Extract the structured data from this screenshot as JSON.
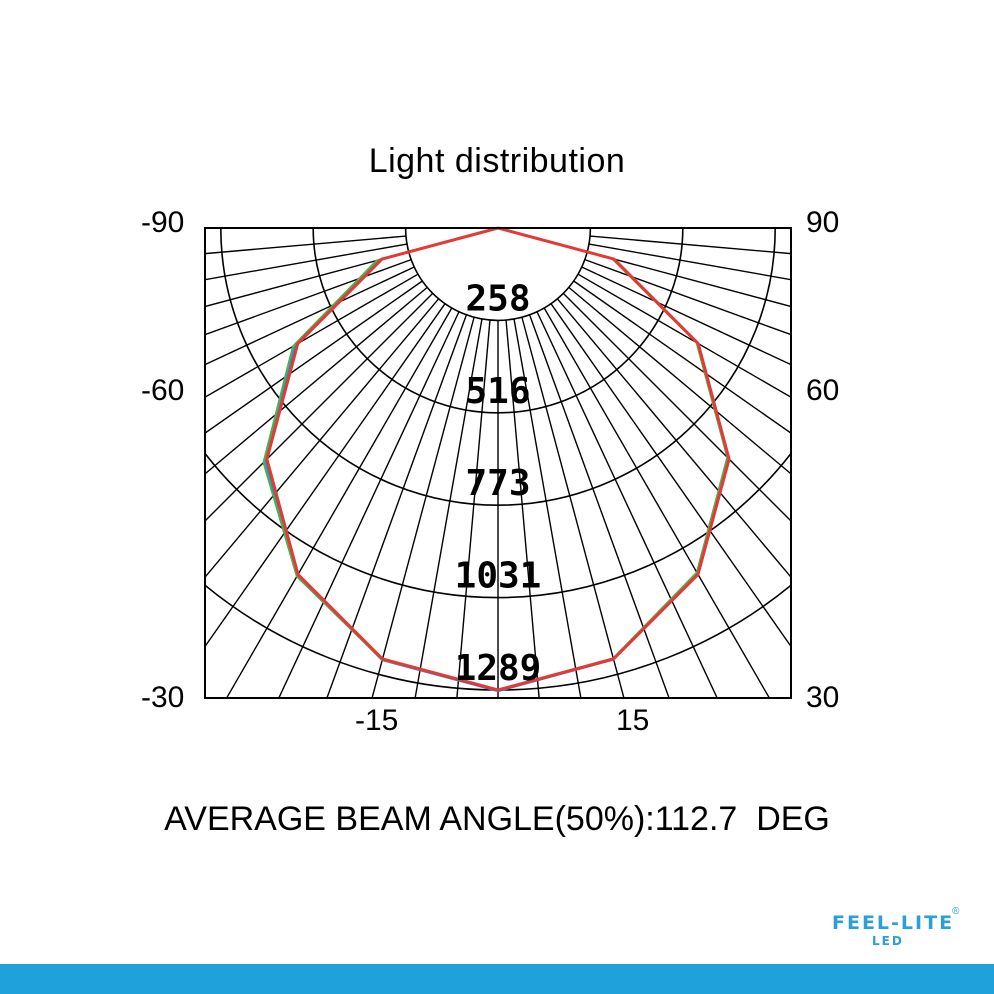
{
  "chart_data": {
    "type": "polar",
    "title": "Light distribution",
    "radial_labels": [
      "258",
      "516",
      "773",
      "1031",
      "1289"
    ],
    "radial_max": 1289,
    "left_labels": [
      "-90",
      "-60",
      "-30"
    ],
    "right_labels": [
      "90",
      "60",
      "30"
    ],
    "bottom_labels": [
      "-15",
      "15"
    ],
    "series": [
      {
        "color": "#e53935",
        "angles": [
          -90,
          -75,
          -60,
          -45,
          -30,
          -15,
          0,
          15,
          30,
          45,
          60,
          75,
          90
        ],
        "values": [
          0,
          335,
          645,
          912,
          1116,
          1245,
          1289,
          1245,
          1116,
          912,
          645,
          335,
          0
        ]
      },
      {
        "color": "#4caf50",
        "angles": [
          -90,
          -75,
          -60,
          -45,
          -30,
          -15,
          0,
          15,
          30,
          45,
          60,
          75,
          90
        ],
        "values": [
          0,
          350,
          660,
          925,
          1122,
          1247,
          1289,
          1243,
          1110,
          905,
          640,
          330,
          0
        ]
      },
      {
        "color": "#1e88e5",
        "angles": [
          -90,
          -75,
          -60,
          -45,
          -30,
          -15,
          0,
          15,
          30,
          45,
          60,
          75,
          90
        ],
        "values": [
          0,
          342,
          652,
          918,
          1119,
          1248,
          1292,
          1246,
          1114,
          909,
          643,
          332,
          0
        ]
      }
    ]
  },
  "beam_angle_text": "AVERAGE BEAM ANGLE(50%):112.7  DEG",
  "logo": {
    "main": "FEEL-LITE",
    "sub": "LED",
    "reg": "®"
  },
  "colors": {
    "brand": "#1fa2dc"
  }
}
